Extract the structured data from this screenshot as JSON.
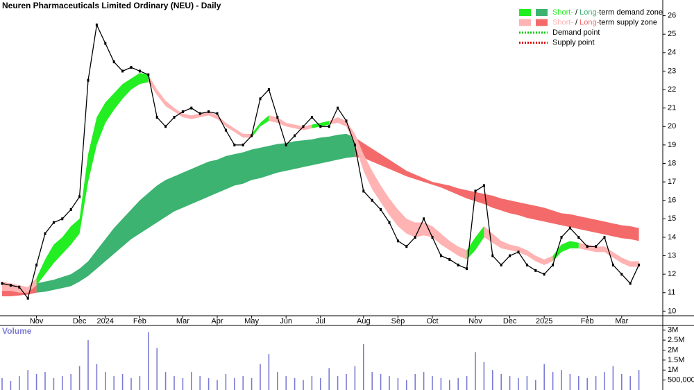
{
  "chart_data": [
    {
      "type": "line",
      "title": "Neuren Pharmaceuticals Limited Ordinary (NEU) - Daily",
      "categories": [
        null,
        null,
        null,
        null,
        "Nov",
        null,
        null,
        null,
        null,
        "Dec",
        null,
        null,
        "2024",
        null,
        null,
        null,
        "Feb",
        null,
        null,
        null,
        null,
        "Mar",
        null,
        null,
        null,
        "Apr",
        null,
        null,
        null,
        "May",
        null,
        null,
        null,
        "Jun",
        null,
        null,
        null,
        "Jul",
        null,
        null,
        null,
        null,
        "Aug",
        null,
        null,
        null,
        "Sep",
        null,
        null,
        null,
        "Oct",
        null,
        null,
        null,
        null,
        "Nov",
        null,
        null,
        null,
        "Dec",
        null,
        null,
        null,
        "2025",
        null,
        null,
        null,
        null,
        "Feb",
        null,
        null,
        null,
        "Mar",
        null,
        null
      ],
      "series": [
        {
          "color": "#000000",
          "values": [
            11.5,
            11.4,
            11.3,
            10.7,
            12.5,
            14.2,
            14.8,
            15.0,
            15.5,
            16.2,
            22.5,
            25.5,
            24.5,
            23.5,
            23.0,
            23.2,
            23.0,
            22.8,
            20.5,
            20.0,
            20.5,
            20.8,
            21.0,
            20.7,
            20.8,
            20.7,
            19.8,
            19.0,
            19.0,
            19.5,
            21.5,
            22.0,
            20.5,
            19.0,
            19.5,
            20.0,
            20.5,
            20.0,
            20.0,
            21.0,
            20.3,
            19.0,
            16.5,
            16.0,
            15.5,
            14.8,
            13.8,
            13.5,
            14.0,
            15.0,
            14.0,
            13.0,
            12.8,
            12.5,
            12.3,
            16.5,
            16.8,
            13.0,
            12.5,
            13.0,
            13.2,
            12.5,
            12.2,
            12.0,
            12.5,
            14.0,
            14.5,
            14.0,
            13.5,
            13.5,
            14.0,
            12.5,
            12.0,
            11.5,
            12.5
          ]
        }
      ],
      "zones": {
        "long_demand": {
          "color": "#3cb371",
          "upper": [
            null,
            null,
            null,
            null,
            11.5,
            11.6,
            11.7,
            11.85,
            12.0,
            12.3,
            12.7,
            13.3,
            13.9,
            14.5,
            15.0,
            15.5,
            16.0,
            16.4,
            16.8,
            17.1,
            17.3,
            17.5,
            17.7,
            17.9,
            18.1,
            18.2,
            18.4,
            18.5,
            18.6,
            18.75,
            18.85,
            18.95,
            19.05,
            19.1,
            19.2,
            19.25,
            19.3,
            19.4,
            19.45,
            19.55,
            19.6,
            19.4,
            null,
            null,
            null,
            null,
            null,
            null,
            null,
            null,
            null,
            null,
            null,
            null,
            null,
            null,
            null,
            null,
            null,
            null,
            null,
            null,
            null,
            null,
            null,
            null,
            null,
            null,
            null,
            null,
            null,
            null,
            null,
            null,
            null
          ],
          "lower": [
            null,
            null,
            null,
            null,
            11.0,
            11.05,
            11.15,
            11.25,
            11.35,
            11.6,
            11.9,
            12.3,
            12.7,
            13.1,
            13.5,
            13.9,
            14.2,
            14.5,
            14.8,
            15.1,
            15.4,
            15.6,
            15.8,
            16.0,
            16.2,
            16.4,
            16.6,
            16.8,
            16.9,
            17.1,
            17.2,
            17.35,
            17.5,
            17.6,
            17.7,
            17.8,
            17.9,
            18.0,
            18.1,
            18.2,
            18.3,
            18.35,
            null,
            null,
            null,
            null,
            null,
            null,
            null,
            null,
            null,
            null,
            null,
            null,
            null,
            null,
            null,
            null,
            null,
            null,
            null,
            null,
            null,
            null,
            null,
            null,
            null,
            null,
            null,
            null,
            null,
            null,
            null,
            null,
            null
          ]
        },
        "long_supply": {
          "color": "#f46a6a",
          "upper": [
            11.1,
            11.15,
            11.2,
            11.3,
            11.5,
            null,
            null,
            null,
            null,
            null,
            null,
            null,
            null,
            null,
            null,
            null,
            null,
            null,
            null,
            null,
            null,
            null,
            null,
            null,
            null,
            null,
            null,
            null,
            null,
            null,
            null,
            null,
            null,
            null,
            null,
            null,
            null,
            null,
            null,
            null,
            null,
            19.4,
            19.1,
            18.8,
            18.5,
            18.2,
            17.9,
            17.6,
            17.4,
            17.2,
            17.0,
            16.9,
            16.8,
            16.65,
            16.55,
            16.45,
            16.35,
            16.25,
            16.1,
            16.0,
            15.9,
            15.8,
            15.7,
            15.6,
            15.45,
            15.3,
            15.25,
            15.15,
            15.05,
            14.95,
            14.85,
            14.75,
            14.65,
            14.6,
            14.5
          ],
          "lower": [
            10.8,
            10.8,
            10.85,
            10.9,
            11.0,
            null,
            null,
            null,
            null,
            null,
            null,
            null,
            null,
            null,
            null,
            null,
            null,
            null,
            null,
            null,
            null,
            null,
            null,
            null,
            null,
            null,
            null,
            null,
            null,
            null,
            null,
            null,
            null,
            null,
            null,
            null,
            null,
            null,
            null,
            null,
            null,
            18.35,
            18.3,
            18.1,
            17.9,
            17.7,
            17.5,
            17.3,
            17.15,
            17.0,
            16.85,
            16.7,
            16.5,
            16.3,
            16.1,
            15.95,
            15.8,
            15.6,
            15.45,
            15.3,
            15.2,
            15.05,
            14.95,
            14.85,
            14.75,
            14.65,
            14.55,
            14.45,
            14.35,
            14.25,
            14.15,
            14.05,
            13.95,
            13.9,
            13.8
          ]
        },
        "short_demand": {
          "color": "#22ee22",
          "upper": [
            null,
            null,
            null,
            null,
            11.8,
            12.8,
            13.6,
            14.0,
            14.6,
            15.0,
            18.5,
            20.5,
            21.3,
            21.8,
            22.3,
            22.6,
            22.9,
            22.8,
            null,
            null,
            null,
            null,
            null,
            null,
            null,
            null,
            null,
            null,
            null,
            19.6,
            20.2,
            20.6,
            null,
            null,
            null,
            null,
            20.1,
            20.2,
            20.3,
            null,
            null,
            null,
            null,
            null,
            null,
            null,
            null,
            null,
            null,
            null,
            null,
            null,
            null,
            null,
            13.3,
            14.0,
            14.6,
            null,
            null,
            null,
            null,
            null,
            null,
            null,
            13.0,
            13.6,
            13.8,
            13.7,
            null,
            null,
            null,
            null,
            null,
            null,
            null
          ],
          "lower": [
            null,
            null,
            null,
            null,
            11.4,
            12.0,
            12.6,
            13.1,
            13.6,
            14.2,
            17.0,
            19.0,
            20.2,
            20.9,
            21.5,
            22.0,
            22.3,
            22.4,
            null,
            null,
            null,
            null,
            null,
            null,
            null,
            null,
            null,
            null,
            null,
            19.4,
            20.0,
            20.3,
            null,
            null,
            null,
            null,
            19.9,
            20.0,
            20.1,
            null,
            null,
            null,
            null,
            null,
            null,
            null,
            null,
            null,
            null,
            null,
            null,
            null,
            null,
            null,
            12.8,
            13.3,
            14.0,
            null,
            null,
            null,
            null,
            null,
            null,
            null,
            12.7,
            13.2,
            13.4,
            13.4,
            null,
            null,
            null,
            null,
            null,
            null,
            null
          ]
        },
        "short_supply": {
          "color": "#ffb3b3",
          "upper": [
            11.6,
            11.5,
            11.4,
            11.3,
            11.8,
            null,
            null,
            null,
            null,
            null,
            null,
            null,
            null,
            null,
            null,
            null,
            null,
            22.8,
            22.0,
            21.4,
            21.0,
            20.7,
            20.6,
            20.7,
            20.8,
            20.6,
            20.2,
            19.9,
            19.6,
            19.6,
            null,
            20.6,
            20.5,
            20.2,
            20.1,
            20.0,
            20.1,
            null,
            20.3,
            20.5,
            20.3,
            19.6,
            18.5,
            17.6,
            16.8,
            16.1,
            15.5,
            15.0,
            14.8,
            14.8,
            14.6,
            14.2,
            13.8,
            13.5,
            13.3,
            null,
            14.6,
            14.2,
            13.8,
            13.6,
            13.5,
            13.3,
            13.0,
            12.8,
            13.0,
            null,
            null,
            13.7,
            13.6,
            13.5,
            13.5,
            13.2,
            12.9,
            12.7,
            12.7
          ],
          "lower": [
            11.1,
            11.1,
            11.0,
            11.0,
            11.4,
            null,
            null,
            null,
            null,
            null,
            null,
            null,
            null,
            null,
            null,
            null,
            null,
            22.4,
            21.7,
            21.1,
            20.8,
            20.5,
            20.4,
            20.5,
            20.6,
            20.4,
            20.0,
            19.7,
            19.4,
            19.4,
            null,
            20.3,
            20.2,
            20.0,
            19.9,
            19.8,
            19.9,
            null,
            20.1,
            20.2,
            20.0,
            19.0,
            17.6,
            16.6,
            15.9,
            15.2,
            14.6,
            14.2,
            14.0,
            14.1,
            14.0,
            13.6,
            13.3,
            13.0,
            12.8,
            null,
            14.0,
            13.7,
            13.4,
            13.3,
            13.2,
            13.0,
            12.7,
            12.5,
            12.7,
            null,
            null,
            13.4,
            13.3,
            13.2,
            13.2,
            12.9,
            12.6,
            12.4,
            12.4
          ]
        }
      },
      "legend": [
        [
          "Short-",
          " / ",
          "Long-",
          "term demand zone"
        ],
        [
          "Short-",
          " / ",
          "Long-",
          "term supply zone"
        ],
        [
          "Demand point"
        ],
        [
          "Supply point"
        ]
      ],
      "legend_position": "top-right",
      "demand_point_color": "#00cc00",
      "supply_point_color": "#dd0000",
      "ylim": [
        9.75,
        26.85
      ],
      "yticks": [
        10,
        11,
        12,
        13,
        14,
        15,
        16,
        17,
        18,
        19,
        20,
        21,
        22,
        23,
        24,
        25,
        26
      ]
    },
    {
      "type": "bar",
      "title": "Volume",
      "color": "#7b7bd6",
      "values": [
        600000,
        450000,
        700000,
        1000000,
        800000,
        900000,
        600000,
        700000,
        800000,
        1200000,
        2500000,
        1300000,
        900000,
        700000,
        800000,
        600000,
        700000,
        2900000,
        2100000,
        900000,
        700000,
        600000,
        900000,
        700000,
        600000,
        500000,
        800000,
        600000,
        700000,
        600000,
        1300000,
        1800000,
        900000,
        700000,
        600000,
        500000,
        700000,
        600000,
        1100000,
        700000,
        800000,
        1200000,
        2300000,
        900000,
        800000,
        700000,
        600000,
        500000,
        800000,
        900000,
        700000,
        600000,
        500000,
        600000,
        700000,
        1900000,
        1400000,
        1000000,
        800000,
        700000,
        600000,
        700000,
        500000,
        1300000,
        900000,
        1000000,
        800000,
        700000,
        600000,
        700000,
        900000,
        1200000,
        800000,
        700000,
        1000000
      ],
      "ylim": [
        0,
        3200000
      ],
      "yticks": [
        {
          "value": 3000000,
          "label": "3M"
        },
        {
          "value": 2500000,
          "label": "2.5M"
        },
        {
          "value": 2000000,
          "label": "2M"
        },
        {
          "value": 1500000,
          "label": "1.5M"
        },
        {
          "value": 1000000,
          "label": "1M"
        },
        {
          "value": 500000,
          "label": "500,000"
        }
      ]
    }
  ]
}
